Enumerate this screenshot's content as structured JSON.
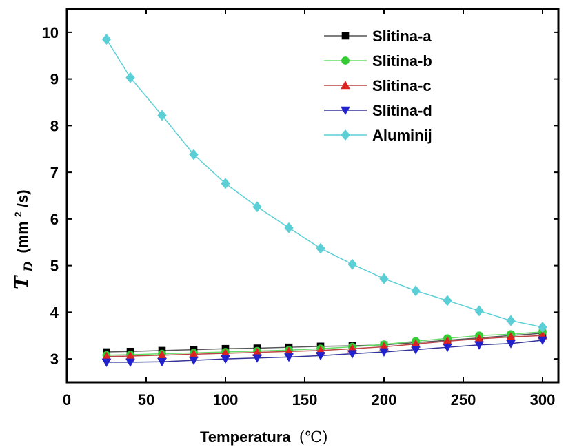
{
  "chart_data": {
    "type": "line",
    "xlabel": "Temperatura",
    "xlabel_unit": "(℃)",
    "ylabel_symbol": "T",
    "ylabel_subscript": "D",
    "ylabel_unit_prefix": "(mm",
    "ylabel_unit_sup": "2",
    "ylabel_unit_suffix": "/s)",
    "xlim": [
      0,
      310
    ],
    "ylim": [
      2.5,
      10.5
    ],
    "xticks": [
      0,
      50,
      100,
      150,
      200,
      250,
      300
    ],
    "yticks": [
      3,
      4,
      5,
      6,
      7,
      8,
      9,
      10
    ],
    "legend_position": "top-right",
    "grid": false,
    "x": [
      25,
      40,
      60,
      80,
      100,
      120,
      140,
      160,
      180,
      200,
      220,
      240,
      260,
      280,
      300
    ],
    "series": [
      {
        "name": "Slitina-a",
        "marker": "square",
        "color": "#000000",
        "line_color": "#555555",
        "values": [
          3.15,
          3.16,
          3.18,
          3.2,
          3.22,
          3.23,
          3.25,
          3.27,
          3.28,
          3.3,
          3.35,
          3.4,
          3.45,
          3.5,
          3.55
        ]
      },
      {
        "name": "Slitina-b",
        "marker": "circle",
        "color": "#33cc33",
        "line_color": "#66dd66",
        "values": [
          3.08,
          3.09,
          3.11,
          3.13,
          3.15,
          3.17,
          3.19,
          3.22,
          3.26,
          3.31,
          3.38,
          3.44,
          3.5,
          3.53,
          3.58
        ]
      },
      {
        "name": "Slitina-c",
        "marker": "triangle-up",
        "color": "#dd2222",
        "line_color": "#bb4444",
        "values": [
          3.05,
          3.06,
          3.08,
          3.1,
          3.12,
          3.14,
          3.16,
          3.18,
          3.22,
          3.26,
          3.32,
          3.38,
          3.43,
          3.47,
          3.5
        ]
      },
      {
        "name": "Slitina-d",
        "marker": "triangle-down",
        "color": "#2222cc",
        "line_color": "#333399",
        "values": [
          2.93,
          2.93,
          2.94,
          2.97,
          3.0,
          3.02,
          3.04,
          3.07,
          3.11,
          3.15,
          3.2,
          3.25,
          3.3,
          3.33,
          3.4
        ]
      },
      {
        "name": "Aluminij",
        "marker": "diamond",
        "color": "#5ccfd6",
        "line_color": "#5ccfd6",
        "values": [
          9.85,
          9.03,
          8.22,
          7.38,
          6.76,
          6.26,
          5.81,
          5.37,
          5.03,
          4.72,
          4.46,
          4.25,
          4.03,
          3.82,
          3.68
        ]
      }
    ]
  }
}
